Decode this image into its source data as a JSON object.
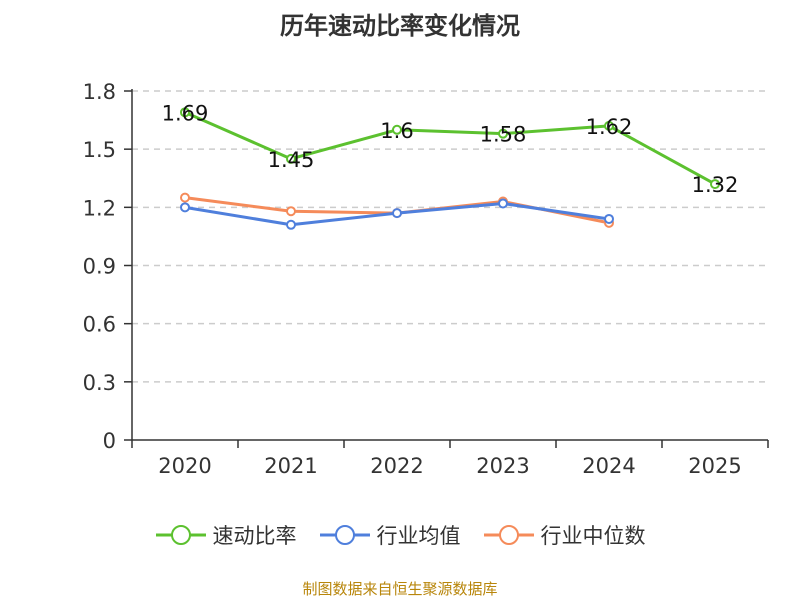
{
  "chart_data": {
    "type": "line",
    "title": "历年速动比率变化情况",
    "categories": [
      "2020",
      "2021",
      "2022",
      "2023",
      "2024",
      "2025"
    ],
    "ylim": [
      0,
      1.8
    ],
    "yticks": [
      "0",
      "0.3",
      "0.6",
      "0.9",
      "1.2",
      "1.5",
      "1.8"
    ],
    "grid": true,
    "legend_position": "bottom",
    "series": [
      {
        "name": "速动比率",
        "color": "#5cc12f",
        "values": [
          1.69,
          1.45,
          1.6,
          1.58,
          1.62,
          1.32
        ],
        "labels": [
          "1.69",
          "1.45",
          "1.6",
          "1.58",
          "1.62",
          "1.32"
        ],
        "show_labels": true
      },
      {
        "name": "行业均值",
        "color": "#4f7fdc",
        "values": [
          1.2,
          1.11,
          1.17,
          1.22,
          1.14,
          null
        ],
        "show_labels": false
      },
      {
        "name": "行业中位数",
        "color": "#f58b5a",
        "values": [
          1.25,
          1.18,
          1.17,
          1.23,
          1.12,
          null
        ],
        "show_labels": false
      }
    ]
  },
  "source_note": "制图数据来自恒生聚源数据库"
}
